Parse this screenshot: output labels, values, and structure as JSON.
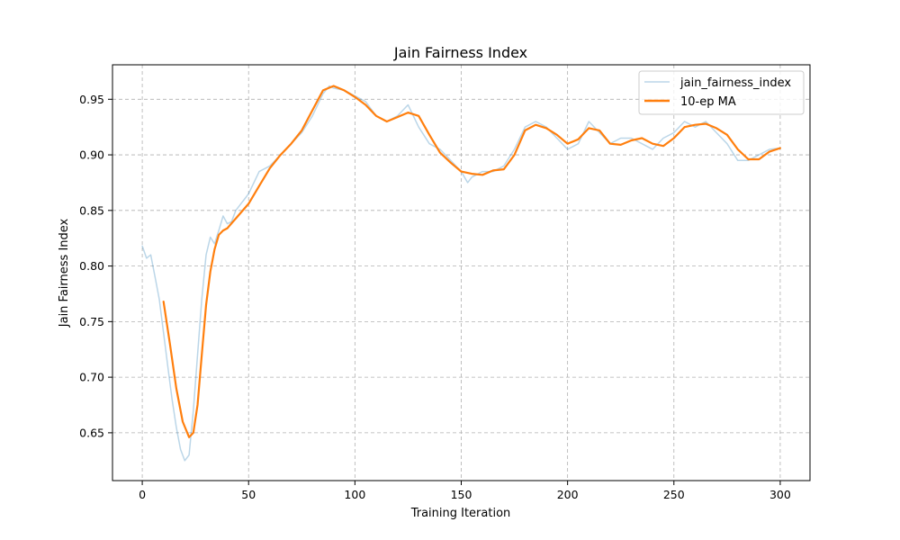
{
  "chart_data": {
    "type": "line",
    "title": "Jain Fairness Index",
    "xlabel": "Training Iteration",
    "ylabel": "Jain Fairness Index",
    "xlim": [
      -14,
      314
    ],
    "ylim": [
      0.607,
      0.981
    ],
    "xticks": [
      0,
      50,
      100,
      150,
      200,
      250,
      300
    ],
    "yticks": [
      0.65,
      0.7,
      0.75,
      0.8,
      0.85,
      0.9,
      0.95
    ],
    "ytick_labels": [
      "0.65",
      "0.70",
      "0.75",
      "0.80",
      "0.85",
      "0.90",
      "0.95"
    ],
    "grid": true,
    "legend": "top-right",
    "series": [
      {
        "name": "jain_fairness_index",
        "color": "#1f77b4",
        "alpha": 0.3,
        "x": [
          0,
          2,
          4,
          6,
          8,
          10,
          12,
          14,
          16,
          18,
          20,
          22,
          24,
          26,
          28,
          30,
          32,
          34,
          36,
          38,
          40,
          42,
          44,
          46,
          48,
          50,
          55,
          60,
          65,
          70,
          75,
          80,
          85,
          88,
          90,
          95,
          100,
          105,
          110,
          115,
          120,
          125,
          130,
          135,
          140,
          145,
          150,
          153,
          155,
          160,
          165,
          170,
          175,
          180,
          185,
          190,
          195,
          200,
          205,
          210,
          215,
          220,
          225,
          230,
          235,
          240,
          245,
          250,
          255,
          260,
          265,
          270,
          275,
          280,
          285,
          290,
          295,
          300
        ],
        "y": [
          0.818,
          0.807,
          0.81,
          0.79,
          0.77,
          0.74,
          0.71,
          0.68,
          0.655,
          0.635,
          0.625,
          0.63,
          0.67,
          0.72,
          0.77,
          0.81,
          0.826,
          0.82,
          0.832,
          0.845,
          0.838,
          0.84,
          0.85,
          0.855,
          0.86,
          0.865,
          0.885,
          0.89,
          0.9,
          0.91,
          0.92,
          0.935,
          0.955,
          0.962,
          0.96,
          0.958,
          0.953,
          0.948,
          0.935,
          0.93,
          0.935,
          0.945,
          0.925,
          0.91,
          0.905,
          0.895,
          0.885,
          0.875,
          0.88,
          0.885,
          0.885,
          0.89,
          0.905,
          0.925,
          0.93,
          0.925,
          0.915,
          0.905,
          0.91,
          0.93,
          0.92,
          0.91,
          0.915,
          0.915,
          0.91,
          0.905,
          0.915,
          0.92,
          0.93,
          0.925,
          0.93,
          0.92,
          0.91,
          0.895,
          0.895,
          0.9,
          0.905,
          0.906
        ]
      },
      {
        "name": "10-ep MA",
        "color": "#ff7f0e",
        "alpha": 1,
        "x": [
          10,
          13,
          16,
          19,
          22,
          24,
          26,
          28,
          30,
          32,
          34,
          36,
          38,
          40,
          45,
          50,
          55,
          60,
          65,
          70,
          75,
          80,
          85,
          90,
          95,
          100,
          105,
          110,
          115,
          120,
          125,
          130,
          135,
          140,
          145,
          150,
          155,
          160,
          165,
          170,
          175,
          180,
          185,
          190,
          195,
          200,
          205,
          210,
          215,
          220,
          225,
          230,
          235,
          240,
          245,
          250,
          255,
          260,
          265,
          270,
          275,
          280,
          285,
          290,
          295,
          300
        ],
        "y": [
          0.768,
          0.73,
          0.69,
          0.66,
          0.646,
          0.65,
          0.675,
          0.72,
          0.765,
          0.795,
          0.815,
          0.828,
          0.832,
          0.834,
          0.845,
          0.856,
          0.872,
          0.888,
          0.9,
          0.91,
          0.922,
          0.94,
          0.958,
          0.962,
          0.958,
          0.952,
          0.945,
          0.935,
          0.93,
          0.934,
          0.938,
          0.935,
          0.918,
          0.902,
          0.893,
          0.885,
          0.883,
          0.882,
          0.886,
          0.887,
          0.9,
          0.922,
          0.927,
          0.924,
          0.918,
          0.91,
          0.914,
          0.924,
          0.922,
          0.91,
          0.909,
          0.913,
          0.915,
          0.91,
          0.908,
          0.915,
          0.925,
          0.927,
          0.928,
          0.924,
          0.918,
          0.905,
          0.896,
          0.896,
          0.903,
          0.906
        ]
      }
    ]
  }
}
